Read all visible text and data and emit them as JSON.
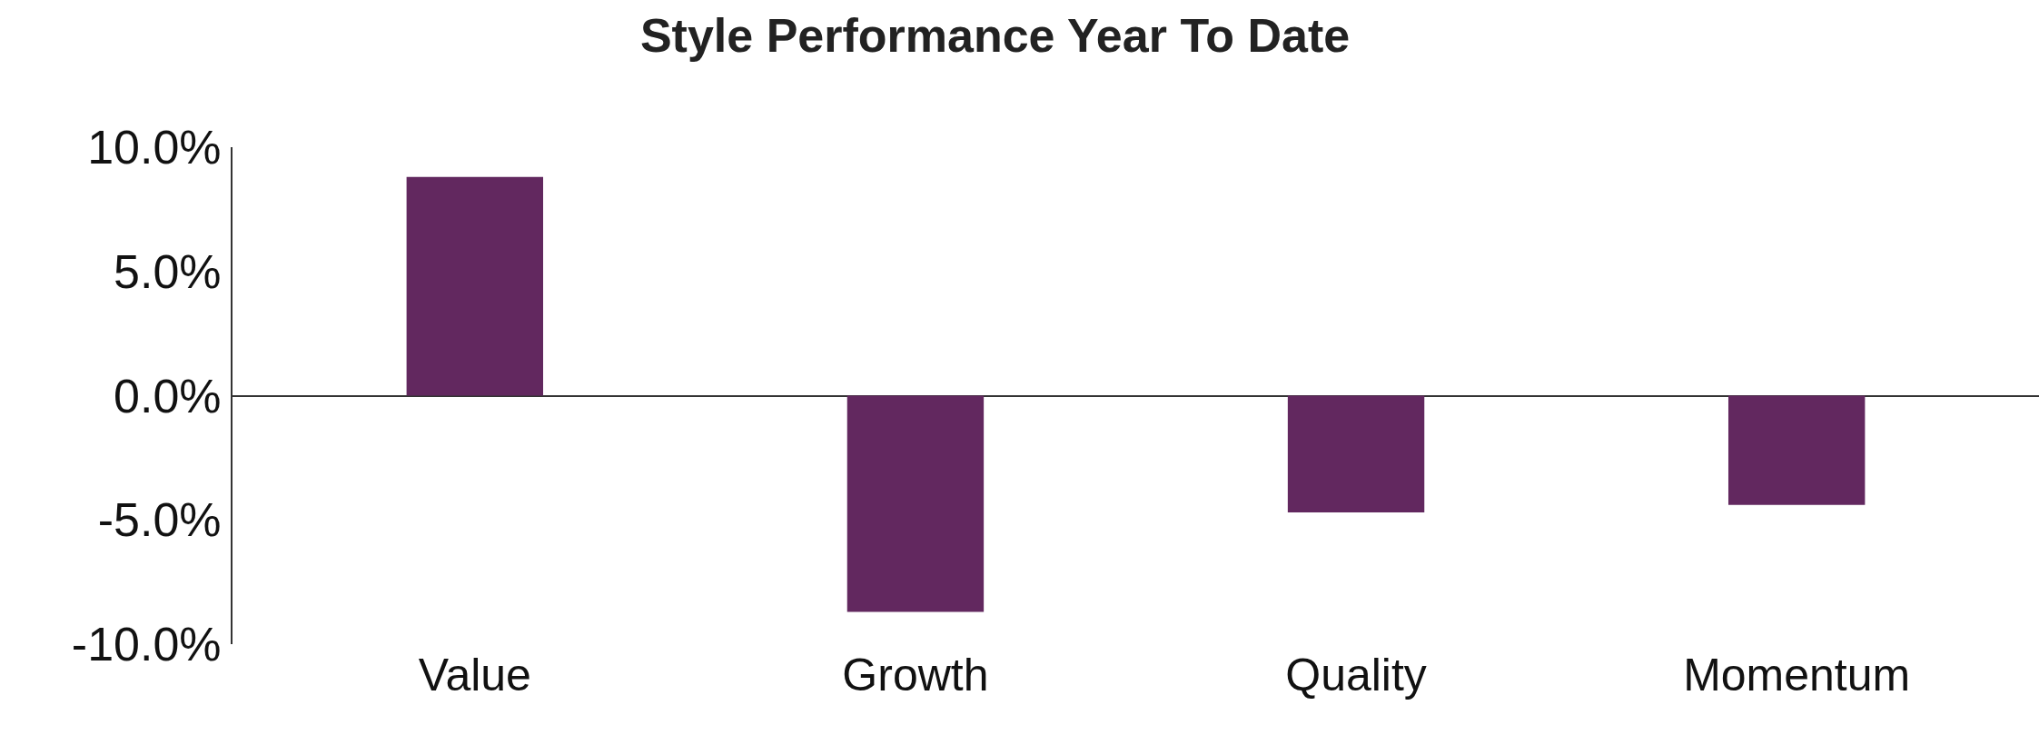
{
  "chart_data": {
    "type": "bar",
    "title": "Style Performance Year To Date",
    "categories": [
      "Value",
      "Growth",
      "Quality",
      "Momentum"
    ],
    "values": [
      8.8,
      -8.7,
      -4.7,
      -4.4
    ],
    "color": "#62285f",
    "ylim": [
      -10,
      10
    ],
    "yticks": [
      {
        "value": -10,
        "label": "-10.0%"
      },
      {
        "value": -5,
        "label": "-5.0%"
      },
      {
        "value": 0,
        "label": "0.0%"
      },
      {
        "value": 5,
        "label": "5.0%"
      },
      {
        "value": 10,
        "label": "10.0%"
      }
    ],
    "legend": false
  }
}
